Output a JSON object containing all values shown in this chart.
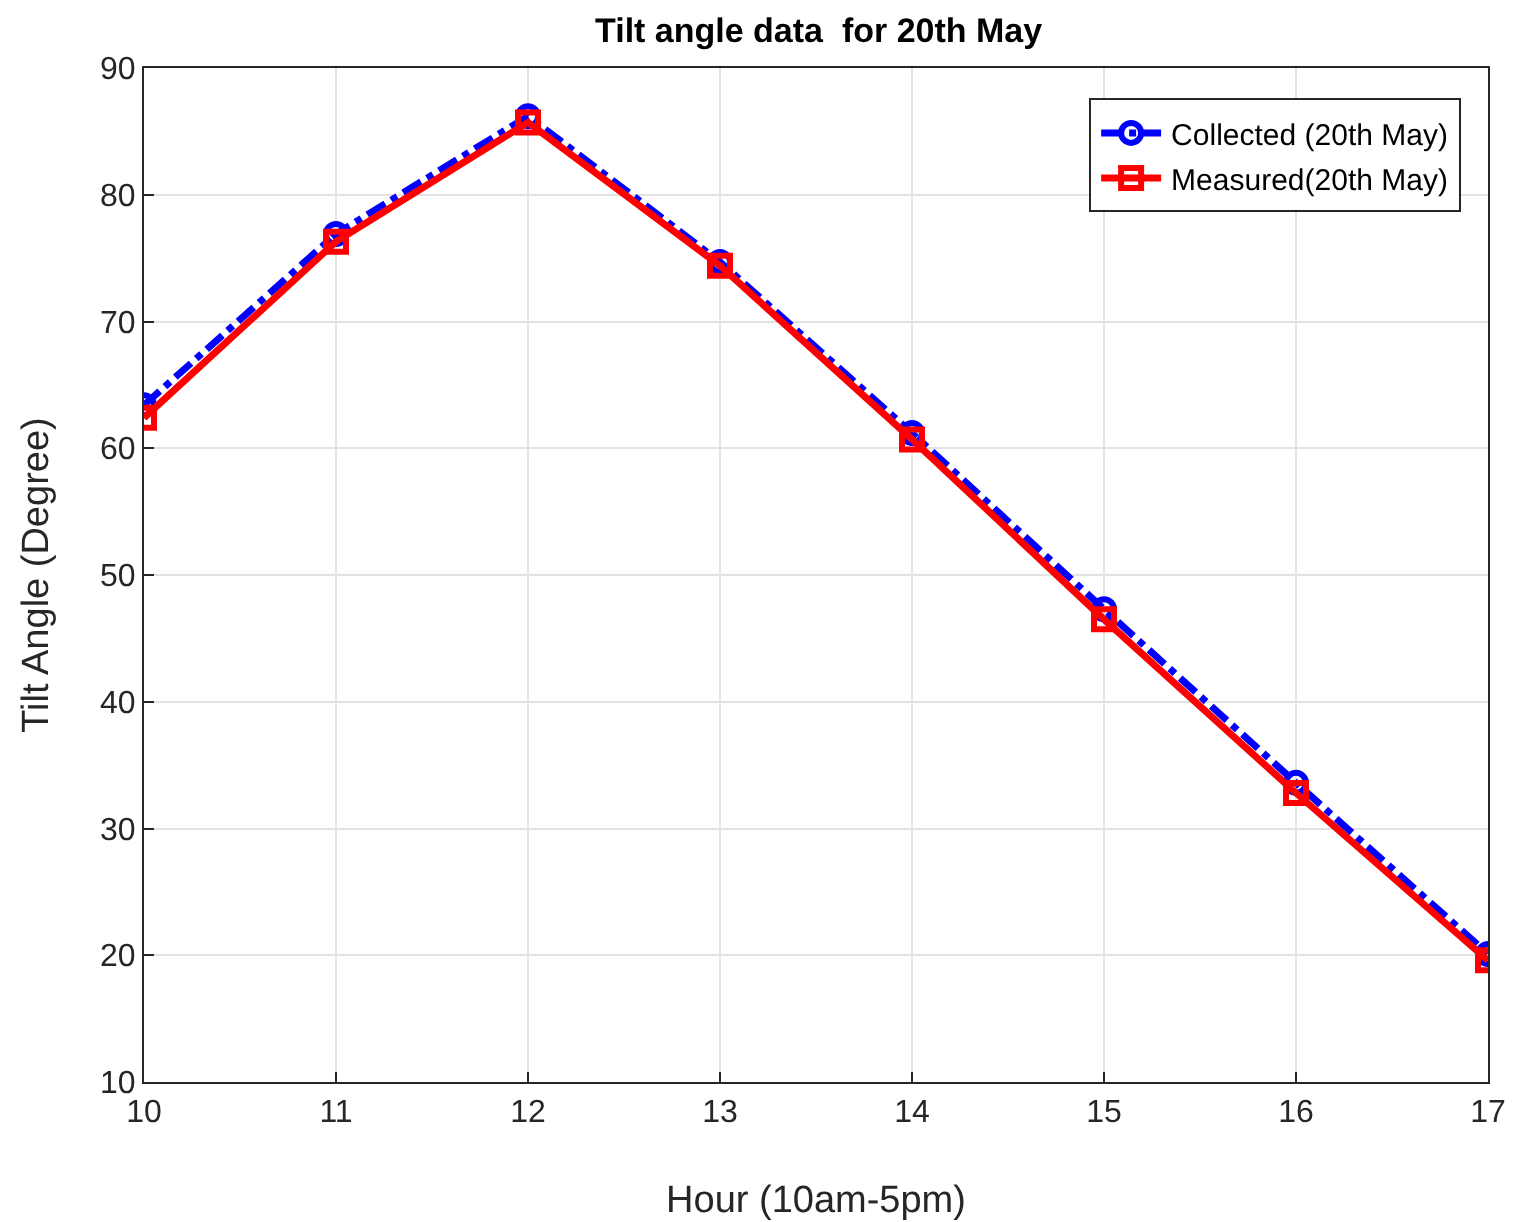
{
  "chart_data": {
    "type": "line",
    "title": "Tilt angle data  for 20th May",
    "xlabel": "Hour (10am-5pm)",
    "ylabel": "Tilt Angle (Degree)",
    "x": [
      10,
      11,
      12,
      13,
      14,
      15,
      16,
      17
    ],
    "xlim": [
      10,
      17
    ],
    "xticks": [
      10,
      11,
      12,
      13,
      14,
      15,
      16,
      17
    ],
    "ylim": [
      10,
      90
    ],
    "yticks": [
      10,
      20,
      30,
      40,
      50,
      60,
      70,
      80,
      90
    ],
    "grid": true,
    "legend": "top right",
    "series": [
      {
        "name": "Collected (20th May)",
        "color": "#0000ff",
        "marker": "circle",
        "line_style": "dashed",
        "values": [
          63.4,
          76.9,
          86.2,
          74.7,
          61.2,
          47.3,
          33.6,
          20.1
        ]
      },
      {
        "name": "Measured(20th May)",
        "color": "#ff0000",
        "marker": "square",
        "line_style": "solid",
        "values": [
          62.4,
          76.3,
          85.7,
          74.4,
          60.7,
          46.5,
          32.8,
          19.6
        ]
      }
    ]
  }
}
